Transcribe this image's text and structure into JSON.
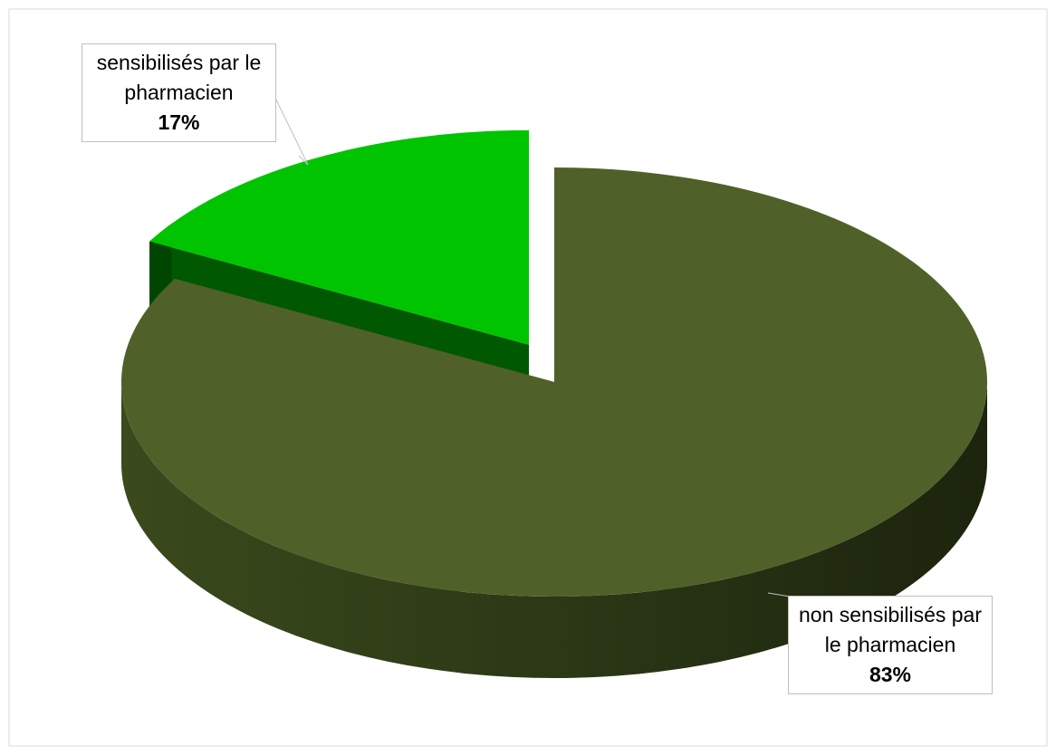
{
  "chart_data": {
    "type": "pie",
    "categories": [
      "non sensibilisés par le pharmacien",
      "sensibilisés par le pharmacien"
    ],
    "values": [
      83,
      17
    ],
    "value_labels": [
      "83%",
      "17%"
    ],
    "colors": [
      "#4f6128",
      "#00c400"
    ]
  }
}
